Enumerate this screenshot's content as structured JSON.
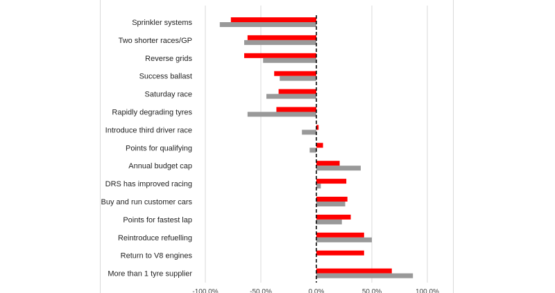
{
  "chart_data": {
    "type": "bar",
    "orientation": "horizontal",
    "categories": [
      "Sprinkler systems",
      "Two shorter races/GP",
      "Reverse grids",
      "Success ballast",
      "Saturday race",
      "Rapidly degrading tyres",
      "Introduce third driver race",
      "Points for qualifying",
      "Annual budget cap",
      "DRS has improved racing",
      "Buy and run customer cars",
      "Points for fastest lap",
      "Reintroduce refuelling",
      "Return to V8 engines",
      "More than 1 tyre supplier"
    ],
    "series": [
      {
        "color": "#ff0000",
        "values": [
          -77,
          -62,
          -65,
          -38,
          -34,
          -36,
          2,
          6,
          21,
          27,
          28,
          31,
          43,
          43,
          68
        ]
      },
      {
        "color": "#999999",
        "values": [
          -87,
          -65,
          -48,
          -33,
          -45,
          -62,
          -13,
          -6,
          40,
          4,
          26,
          23,
          50,
          null,
          87
        ]
      }
    ],
    "xlim": [
      -100,
      100
    ],
    "xticks": [
      -100,
      -50,
      0,
      50,
      100
    ],
    "xtick_labels": [
      "-100.0%",
      "-50.0%",
      "0.0%",
      "50.0%",
      "100.0%"
    ],
    "grid": true,
    "zero_line": "dashed"
  }
}
